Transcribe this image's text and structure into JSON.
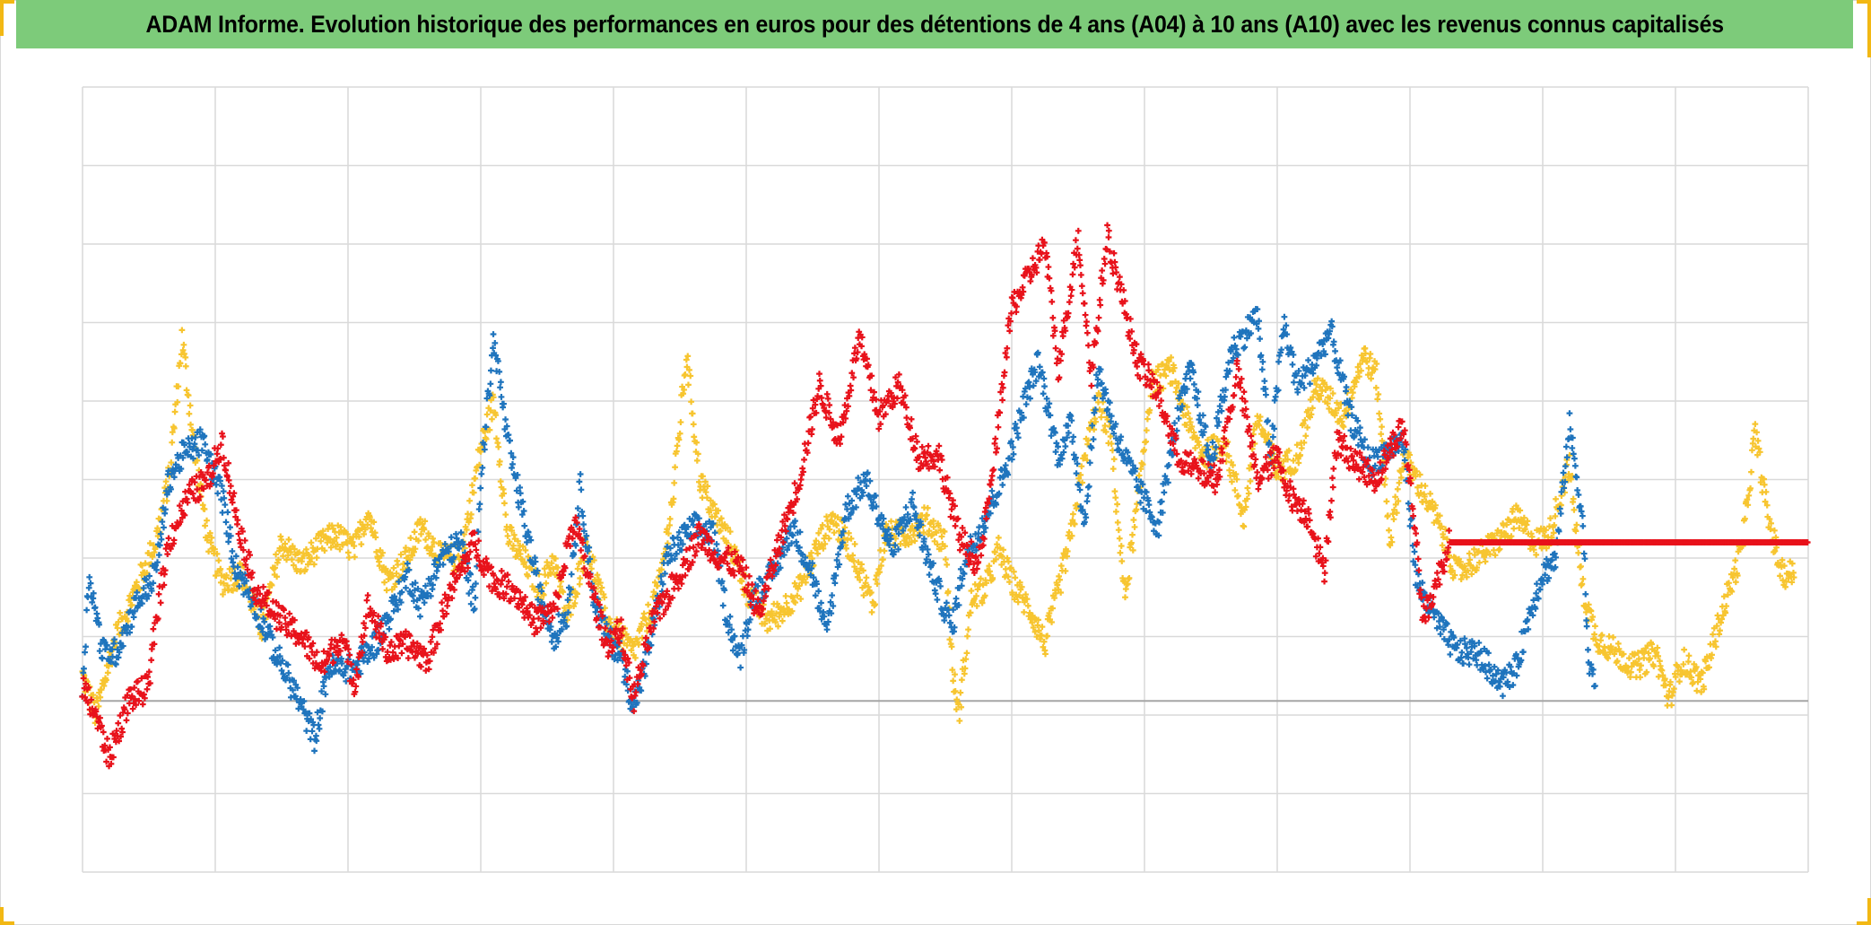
{
  "title": "ADAM Informe. Evolution historique des performances en euros pour des détentions de 4 ans (A04) à 10 ans (A10) avec les revenus connus capitalisés",
  "colors": {
    "title_bar": "#7dcb7a",
    "corner_accent": "#f2b814",
    "grid": "#d9d9d9",
    "zero_line": "#a6a6a6"
  },
  "chart_data": {
    "type": "scatter",
    "marker": "plus",
    "title": "ADAM Informe. Evolution historique des performances en euros pour des détentions de 4 ans (A04) à 10 ans (A10) avec les revenus connus capitalisés",
    "xlabel": "",
    "ylabel": "",
    "tick_labels_visible": false,
    "grid": true,
    "x_divisions": 13,
    "y_divisions": 10,
    "xlim": [
      0,
      13
    ],
    "ylim": [
      -2,
      8
    ],
    "zero_line_y": 0.18,
    "series": [
      {
        "color": "#e8121b",
        "anchors": [
          [
            0,
            0.35
          ],
          [
            0.1,
            0
          ],
          [
            0.2,
            -0.55
          ],
          [
            0.35,
            0.2
          ],
          [
            0.5,
            0.35
          ],
          [
            0.55,
            1.2
          ],
          [
            0.65,
            2.2
          ],
          [
            0.8,
            2.8
          ],
          [
            0.95,
            3
          ],
          [
            1.05,
            3.5
          ],
          [
            1.15,
            2.6
          ],
          [
            1.3,
            1.6
          ],
          [
            1.5,
            1.2
          ],
          [
            1.65,
            1
          ],
          [
            1.8,
            0.6
          ],
          [
            1.95,
            1
          ],
          [
            2.05,
            0.4
          ],
          [
            2.15,
            1.4
          ],
          [
            2.3,
            0.8
          ],
          [
            2.45,
            0.9
          ],
          [
            2.6,
            0.7
          ],
          [
            2.75,
            1.5
          ],
          [
            2.95,
            2.2
          ],
          [
            3.1,
            1.7
          ],
          [
            3.25,
            1.6
          ],
          [
            3.4,
            1.2
          ],
          [
            3.55,
            1.3
          ],
          [
            3.7,
            2.5
          ],
          [
            3.85,
            1.5
          ],
          [
            3.95,
            0.9
          ],
          [
            4.05,
            1.1
          ],
          [
            4.15,
            0.2
          ],
          [
            4.3,
            1.2
          ],
          [
            4.5,
            1.8
          ],
          [
            4.65,
            2.3
          ],
          [
            4.8,
            2
          ],
          [
            4.95,
            1.9
          ],
          [
            5.1,
            1.3
          ],
          [
            5.25,
            2.2
          ],
          [
            5.4,
            3
          ],
          [
            5.55,
            4.2
          ],
          [
            5.7,
            3.5
          ],
          [
            5.85,
            4.8
          ],
          [
            6,
            3.8
          ],
          [
            6.15,
            4.2
          ],
          [
            6.3,
            3.3
          ],
          [
            6.45,
            3.3
          ],
          [
            6.6,
            2.3
          ],
          [
            6.75,
            1.9
          ],
          [
            6.85,
            3
          ],
          [
            7,
            5.2
          ],
          [
            7.1,
            5.5
          ],
          [
            7.25,
            6
          ],
          [
            7.35,
            4.4
          ],
          [
            7.5,
            6.1
          ],
          [
            7.6,
            4.3
          ],
          [
            7.72,
            6.1
          ],
          [
            7.85,
            5.2
          ],
          [
            7.95,
            4.5
          ],
          [
            8.1,
            4.1
          ],
          [
            8.25,
            3.3
          ],
          [
            8.4,
            3.1
          ],
          [
            8.55,
            3
          ],
          [
            8.7,
            4.4
          ],
          [
            8.85,
            3
          ],
          [
            9,
            3.3
          ],
          [
            9.1,
            2.8
          ],
          [
            9.25,
            2.5
          ],
          [
            9.35,
            1.8
          ],
          [
            9.45,
            3.5
          ],
          [
            9.6,
            3.2
          ],
          [
            9.75,
            3
          ],
          [
            9.85,
            3.4
          ],
          [
            9.95,
            3.7
          ],
          [
            10.05,
            2.2
          ],
          [
            10.1,
            1.2
          ],
          [
            10.3,
            2.2
          ],
          [
            13,
            2.2
          ]
        ]
      },
      {
        "color": "#1f74bd",
        "anchors": [
          [
            0,
            0.35
          ],
          [
            0.05,
            1.8
          ],
          [
            0.15,
            0.8
          ],
          [
            0.25,
            0.8
          ],
          [
            0.4,
            1.4
          ],
          [
            0.55,
            1.8
          ],
          [
            0.65,
            3
          ],
          [
            0.75,
            3.3
          ],
          [
            0.9,
            3.5
          ],
          [
            1.05,
            2.8
          ],
          [
            1.15,
            1.9
          ],
          [
            1.3,
            1.4
          ],
          [
            1.45,
            0.8
          ],
          [
            1.6,
            0.3
          ],
          [
            1.75,
            -0.3
          ],
          [
            1.85,
            0.6
          ],
          [
            2.05,
            0.6
          ],
          [
            2.2,
            0.9
          ],
          [
            2.35,
            1.4
          ],
          [
            2.45,
            1.8
          ],
          [
            2.55,
            1.4
          ],
          [
            2.7,
            2
          ],
          [
            2.85,
            2.2
          ],
          [
            2.95,
            1.4
          ],
          [
            3,
            3
          ],
          [
            3.1,
            4.8
          ],
          [
            3.2,
            3.5
          ],
          [
            3.35,
            2.3
          ],
          [
            3.45,
            1.5
          ],
          [
            3.55,
            1
          ],
          [
            3.65,
            1.3
          ],
          [
            3.75,
            2.9
          ],
          [
            3.85,
            1.5
          ],
          [
            3.95,
            1
          ],
          [
            4.05,
            0.8
          ],
          [
            4.15,
            0.1
          ],
          [
            4.25,
            0.7
          ],
          [
            4.4,
            2
          ],
          [
            4.6,
            2.4
          ],
          [
            4.75,
            2.3
          ],
          [
            4.85,
            1.3
          ],
          [
            4.95,
            0.7
          ],
          [
            5.05,
            1.5
          ],
          [
            5.2,
            1.8
          ],
          [
            5.35,
            2.4
          ],
          [
            5.5,
            1.8
          ],
          [
            5.6,
            1
          ],
          [
            5.75,
            2.6
          ],
          [
            5.9,
            3
          ],
          [
            6.1,
            2.1
          ],
          [
            6.25,
            2.7
          ],
          [
            6.4,
            1.8
          ],
          [
            6.55,
            1.1
          ],
          [
            6.65,
            2
          ],
          [
            6.8,
            2.5
          ],
          [
            6.95,
            3.1
          ],
          [
            7.1,
            4
          ],
          [
            7.2,
            4.5
          ],
          [
            7.35,
            3.3
          ],
          [
            7.45,
            3.7
          ],
          [
            7.55,
            2.4
          ],
          [
            7.65,
            4.4
          ],
          [
            7.8,
            3.5
          ],
          [
            7.95,
            2.9
          ],
          [
            8.1,
            2.4
          ],
          [
            8.25,
            3.8
          ],
          [
            8.35,
            4.4
          ],
          [
            8.5,
            3.2
          ],
          [
            8.65,
            4.6
          ],
          [
            8.85,
            5.1
          ],
          [
            8.95,
            3.3
          ],
          [
            9.05,
            5
          ],
          [
            9.15,
            4.2
          ],
          [
            9.25,
            4.4
          ],
          [
            9.4,
            4.9
          ],
          [
            9.55,
            3.8
          ],
          [
            9.7,
            3.2
          ],
          [
            9.85,
            3.4
          ],
          [
            9.95,
            3.5
          ],
          [
            10.05,
            1.7
          ],
          [
            10.2,
            1.2
          ],
          [
            10.35,
            0.8
          ],
          [
            10.5,
            0.8
          ],
          [
            10.6,
            0.6
          ],
          [
            10.7,
            0.4
          ],
          [
            10.8,
            0.6
          ],
          [
            10.9,
            1.3
          ],
          [
            11,
            1.8
          ],
          [
            11.1,
            2
          ],
          [
            11.2,
            3.7
          ],
          [
            11.3,
            2.5
          ],
          [
            11.35,
            0.5
          ],
          [
            11.4,
            0.5
          ]
        ]
      },
      {
        "color": "#f7c530",
        "anchors": [
          [
            0,
            0.5
          ],
          [
            0.1,
            0
          ],
          [
            0.25,
            1
          ],
          [
            0.4,
            1.6
          ],
          [
            0.55,
            2.2
          ],
          [
            0.65,
            3
          ],
          [
            0.75,
            4.8
          ],
          [
            0.85,
            3.3
          ],
          [
            0.95,
            2.2
          ],
          [
            1.05,
            1.7
          ],
          [
            1.2,
            1.8
          ],
          [
            1.35,
            1.1
          ],
          [
            1.5,
            2.2
          ],
          [
            1.65,
            1.9
          ],
          [
            1.75,
            2.1
          ],
          [
            1.9,
            2.3
          ],
          [
            2.05,
            2.1
          ],
          [
            2.15,
            2.6
          ],
          [
            2.3,
            1.7
          ],
          [
            2.45,
            2
          ],
          [
            2.55,
            2.4
          ],
          [
            2.7,
            2
          ],
          [
            2.85,
            2
          ],
          [
            3,
            3.4
          ],
          [
            3.1,
            4
          ],
          [
            3.2,
            2.3
          ],
          [
            3.35,
            1.9
          ],
          [
            3.45,
            1.6
          ],
          [
            3.55,
            2
          ],
          [
            3.65,
            1.2
          ],
          [
            3.8,
            2.2
          ],
          [
            3.95,
            1.2
          ],
          [
            4.05,
            1
          ],
          [
            4.15,
            0.8
          ],
          [
            4.25,
            1.2
          ],
          [
            4.35,
            1.7
          ],
          [
            4.45,
            2.8
          ],
          [
            4.55,
            4.6
          ],
          [
            4.65,
            3
          ],
          [
            4.75,
            2.6
          ],
          [
            4.9,
            2.1
          ],
          [
            5,
            1.6
          ],
          [
            5.15,
            1.2
          ],
          [
            5.25,
            1.3
          ],
          [
            5.4,
            1.6
          ],
          [
            5.55,
            2.2
          ],
          [
            5.65,
            2.5
          ],
          [
            5.8,
            2.1
          ],
          [
            5.95,
            1.4
          ],
          [
            6.05,
            2.3
          ],
          [
            6.2,
            2.3
          ],
          [
            6.35,
            2.5
          ],
          [
            6.5,
            2.2
          ],
          [
            6.55,
            0.6
          ],
          [
            6.6,
            0
          ],
          [
            6.7,
            1.5
          ],
          [
            6.8,
            1.6
          ],
          [
            6.9,
            2.1
          ],
          [
            7,
            1.7
          ],
          [
            7.15,
            1.3
          ],
          [
            7.25,
            0.9
          ],
          [
            7.35,
            1.6
          ],
          [
            7.45,
            2.3
          ],
          [
            7.55,
            3.3
          ],
          [
            7.65,
            4
          ],
          [
            7.75,
            3.5
          ],
          [
            7.85,
            1.5
          ],
          [
            7.95,
            2.7
          ],
          [
            8.05,
            4.2
          ],
          [
            8.2,
            4.4
          ],
          [
            8.35,
            3.6
          ],
          [
            8.45,
            3.3
          ],
          [
            8.6,
            3.5
          ],
          [
            8.75,
            2.5
          ],
          [
            8.85,
            3.8
          ],
          [
            9,
            3.1
          ],
          [
            9.15,
            3.3
          ],
          [
            9.3,
            4.2
          ],
          [
            9.5,
            3.8
          ],
          [
            9.65,
            4.6
          ],
          [
            9.75,
            4.3
          ],
          [
            9.85,
            2.2
          ],
          [
            9.95,
            3.3
          ],
          [
            10.05,
            3
          ],
          [
            10.2,
            2.5
          ],
          [
            10.35,
            1.8
          ],
          [
            10.5,
            2
          ],
          [
            10.65,
            2.2
          ],
          [
            10.8,
            2.5
          ],
          [
            10.95,
            2.2
          ],
          [
            11.05,
            2.3
          ],
          [
            11.2,
            3.2
          ],
          [
            11.3,
            1.6
          ],
          [
            11.4,
            1
          ],
          [
            11.55,
            0.8
          ],
          [
            11.7,
            0.6
          ],
          [
            11.85,
            0.8
          ],
          [
            11.95,
            0.2
          ],
          [
            12.05,
            0.7
          ],
          [
            12.2,
            0.4
          ],
          [
            12.35,
            1.3
          ],
          [
            12.5,
            2.1
          ],
          [
            12.6,
            3.6
          ],
          [
            12.7,
            2.5
          ],
          [
            12.8,
            1.8
          ],
          [
            12.9,
            1.8
          ]
        ]
      }
    ]
  }
}
